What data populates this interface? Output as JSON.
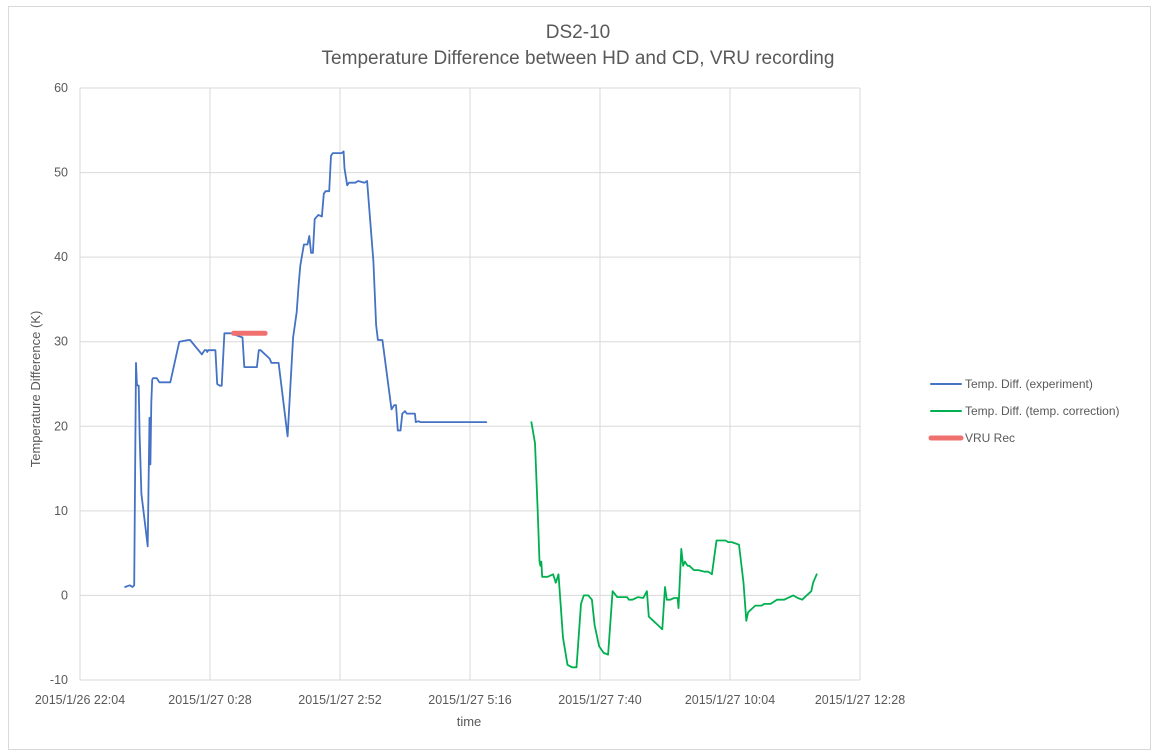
{
  "chart_data": {
    "type": "line",
    "title": "DS2-10",
    "subtitle": "Temperature Difference between HD and CD, VRU recording",
    "xlabel": "time",
    "ylabel": "Temperature Difference (K)",
    "ylim": [
      -10,
      60
    ],
    "yticks": [
      -10,
      0,
      10,
      20,
      30,
      40,
      50,
      60
    ],
    "x_unit": "minutes since 2015/1/26 22:04",
    "xlim": [
      0,
      864
    ],
    "xticks": [
      {
        "value": 0,
        "label": "2015/1/26 22:04"
      },
      {
        "value": 144,
        "label": "2015/1/27 0:28"
      },
      {
        "value": 288,
        "label": "2015/1/27 2:52"
      },
      {
        "value": 432,
        "label": "2015/1/27 5:16"
      },
      {
        "value": 576,
        "label": "2015/1/27 7:40"
      },
      {
        "value": 720,
        "label": "2015/1/27 10:04"
      },
      {
        "value": 864,
        "label": "2015/1/27 12:28"
      }
    ],
    "grid": true,
    "legend_position": "right",
    "series": [
      {
        "name": "Temp. Diff. (experiment)",
        "color": "#4472c4",
        "x": [
          50,
          55,
          58,
          60,
          62,
          63,
          64,
          65,
          66,
          68,
          72,
          75,
          77,
          78,
          79,
          80,
          81,
          83,
          85,
          88,
          100,
          110,
          120,
          122,
          135,
          138,
          140,
          141,
          142,
          150,
          152,
          155,
          157,
          160,
          167,
          170,
          172,
          180,
          182,
          185,
          196,
          198,
          200,
          210,
          212,
          215,
          217,
          220,
          230,
          236,
          240,
          242,
          244,
          248,
          252,
          254,
          256,
          258,
          260,
          264,
          268,
          270,
          272,
          274,
          276,
          278,
          280,
          282,
          285,
          290,
          292,
          293,
          296,
          298,
          305,
          308,
          315,
          318,
          325,
          328,
          330,
          335,
          345,
          348,
          350,
          352,
          353,
          355,
          357,
          360,
          362,
          364,
          366,
          368,
          370,
          371,
          372,
          375,
          377,
          380,
          383,
          385,
          390,
          395,
          400,
          402,
          405,
          420,
          425,
          428,
          430,
          432,
          435,
          440,
          445,
          450
        ],
        "values": [
          1,
          1.2,
          1,
          1.2,
          27.5,
          25,
          24.8,
          24.8,
          19,
          12,
          8.5,
          5.8,
          21,
          15.5,
          22.8,
          25.5,
          25.7,
          25.7,
          25.7,
          25.2,
          25.2,
          30,
          30.2,
          30.2,
          28.5,
          29,
          29,
          28.8,
          29,
          29,
          25,
          24.8,
          24.8,
          31,
          31,
          31,
          30.8,
          30.5,
          27,
          27,
          27,
          29,
          29,
          28,
          27.5,
          27.5,
          27.5,
          27.5,
          18.8,
          30.5,
          33.5,
          36.5,
          39,
          41.5,
          41.5,
          42.5,
          40.5,
          40.5,
          44.5,
          45,
          44.8,
          47.5,
          47.8,
          47.8,
          47.8,
          52,
          52.3,
          52.3,
          52.3,
          52.3,
          52.5,
          50.5,
          48.5,
          48.8,
          48.8,
          49,
          48.8,
          49,
          39.5,
          32,
          30.2,
          30.2,
          22,
          22.5,
          22.5,
          19.5,
          19.5,
          19.5,
          21.5,
          21.8,
          21.5,
          21.5,
          21.5,
          21.5,
          21.5,
          21.5,
          20.5,
          20.6,
          20.5,
          20.5,
          20.5,
          20.5,
          20.5,
          20.5,
          20.5,
          20.5,
          20.5,
          20.5,
          20.5,
          20.5,
          20.5,
          20.5,
          20.5,
          20.5,
          20.5,
          20.5
        ]
      },
      {
        "name": "Temp. Diff. (temp. correction)",
        "color": "#00b050",
        "x": [
          500,
          504,
          507,
          509,
          510,
          511,
          512,
          514,
          518,
          524,
          527,
          530,
          535,
          540,
          545,
          550,
          555,
          558,
          560,
          563,
          567,
          570,
          575,
          580,
          585,
          590,
          595,
          602,
          603,
          606,
          608,
          612,
          618,
          624,
          628,
          630,
          635,
          640,
          645,
          648,
          650,
          654,
          658,
          662,
          663,
          666,
          668,
          670,
          673,
          675,
          678,
          680,
          685,
          692,
          696,
          700,
          705,
          710,
          715,
          718,
          720,
          722,
          730,
          735,
          738,
          740,
          745,
          748,
          750,
          755,
          758,
          765,
          772,
          780,
          790,
          795,
          800,
          805,
          810,
          812,
          816
        ],
        "values": [
          20.5,
          18,
          10,
          4,
          3.5,
          4,
          2.2,
          2.2,
          2.2,
          2.5,
          1.5,
          2.5,
          -5,
          -8.2,
          -8.5,
          -8.5,
          -1,
          0,
          0,
          0,
          -0.5,
          -3.5,
          -6,
          -6.8,
          -7,
          0.5,
          -0.2,
          -0.2,
          -0.2,
          -0.2,
          -0.5,
          -0.5,
          -0.2,
          -0.3,
          0.5,
          -2.5,
          -3,
          -3.5,
          -4,
          1,
          -0.5,
          -0.5,
          -0.3,
          -0.3,
          -1.5,
          5.5,
          3.5,
          4,
          3.5,
          3.5,
          3.2,
          3,
          3,
          2.8,
          2.8,
          2.5,
          6.5,
          6.5,
          6.5,
          6.3,
          6.3,
          6.3,
          6,
          1.5,
          -3,
          -2,
          -1.5,
          -1.2,
          -1.2,
          -1.2,
          -1,
          -1,
          -0.5,
          -0.5,
          0,
          -0.3,
          -0.5,
          0,
          0.5,
          1.5,
          2.5
        ]
      },
      {
        "name": "VRU Rec",
        "color": "#f07070",
        "x": [
          170,
          205
        ],
        "values": [
          31,
          31
        ]
      }
    ]
  }
}
